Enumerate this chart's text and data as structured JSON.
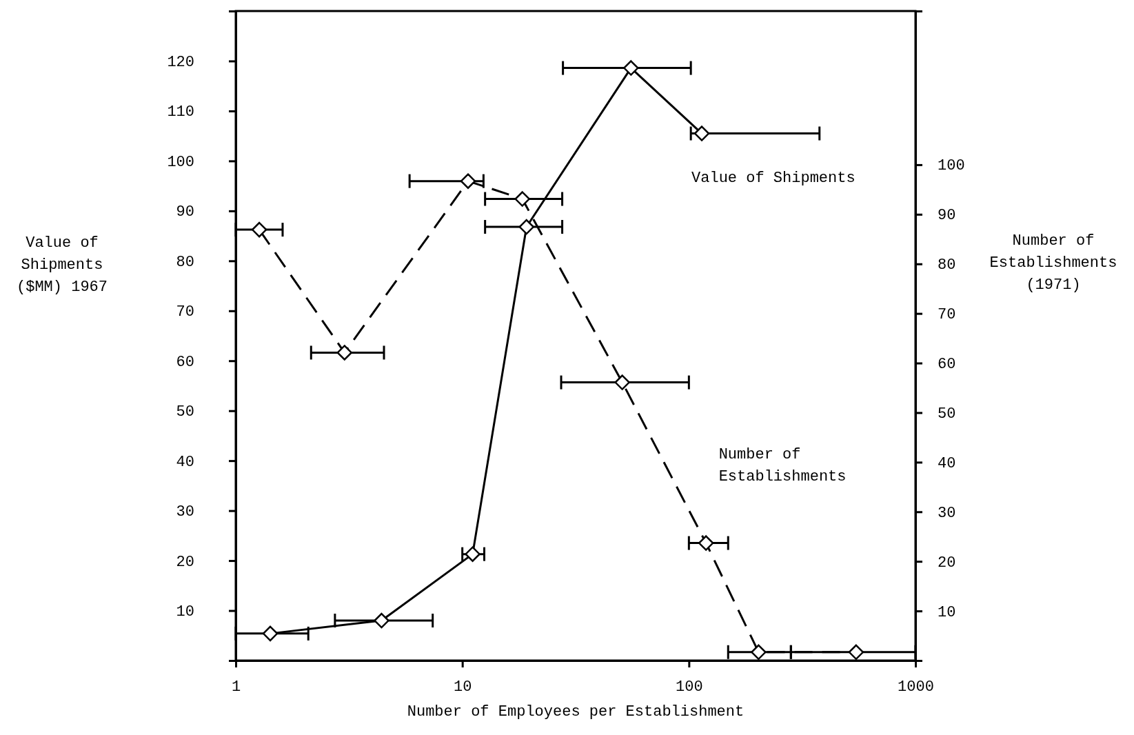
{
  "chart_data": {
    "type": "line",
    "xlabel": "Number of Employees per Establishment",
    "ylabel": "Value of Shipments ($MM) 1967",
    "y2label": "Number of Establishments (1971)",
    "log": "x",
    "xlim": [
      1,
      1000
    ],
    "xticks": [
      1,
      10,
      100,
      1000
    ],
    "ylim": [
      0,
      130
    ],
    "yticks": [
      10,
      20,
      30,
      40,
      50,
      60,
      70,
      80,
      90,
      100,
      110,
      120
    ],
    "y2lim": [
      0,
      131
    ],
    "y2ticks": [
      10,
      20,
      30,
      40,
      50,
      60,
      70,
      80,
      90,
      100
    ],
    "marker": "diamond",
    "grid": false,
    "legend": false,
    "series": [
      {
        "name": "Value of Shipments",
        "color": "#000000",
        "line_style": "solid",
        "x": [
          1.42,
          4.4,
          11.1,
          19.2,
          55.5,
          114
        ],
        "values": [
          5.4,
          8,
          21.3,
          86.8,
          118.6,
          105.5
        ],
        "xerrors": [
          [
            1,
            2.09
          ],
          [
            2.74,
            7.4
          ],
          [
            10,
            12.5
          ],
          [
            12.6,
            27.6
          ],
          [
            27.8,
            102
          ],
          [
            102,
            377
          ]
        ]
      },
      {
        "name": "Number of Establishments",
        "color": "#000000",
        "line_style": "dashed",
        "axis": "y2",
        "x": [
          1.27,
          3.02,
          10.6,
          18.4,
          50.8,
          119,
          203,
          547
        ],
        "values": [
          86.9,
          62.1,
          96.7,
          93.1,
          56.1,
          23.7,
          1.7,
          1.7
        ],
        "xerrors": [
          [
            1,
            1.61
          ],
          [
            2.15,
            4.51
          ],
          [
            5.85,
            12.4
          ],
          [
            12.6,
            27.6
          ],
          [
            27.3,
            100
          ],
          [
            100,
            149
          ],
          [
            149,
            282
          ],
          [
            282,
            1000
          ]
        ]
      }
    ]
  }
}
